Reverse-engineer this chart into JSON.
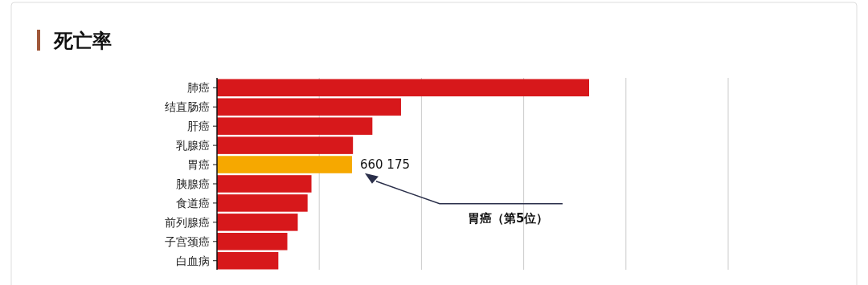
{
  "chart_data": {
    "type": "bar",
    "title": "死亡率",
    "orientation": "horizontal",
    "categories": [
      "肺癌",
      "结直肠癌",
      "肝癌",
      "乳腺癌",
      "胃癌",
      "胰腺癌",
      "食道癌",
      "前列腺癌",
      "子宫颈癌",
      "白血病"
    ],
    "values": [
      1820000,
      900000,
      760000,
      665000,
      660175,
      462000,
      443000,
      395000,
      344000,
      300000
    ],
    "colors": [
      "#d7181b",
      "#d7181b",
      "#d7181b",
      "#d7181b",
      "#f6a800",
      "#d7181b",
      "#d7181b",
      "#d7181b",
      "#d7181b",
      "#d7181b"
    ],
    "value_labels": [
      null,
      null,
      null,
      null,
      "660 175",
      null,
      null,
      null,
      null,
      null
    ],
    "annotations": [
      "胃癌（第5位）"
    ],
    "grid": "x",
    "xticks": [
      {
        "value": 500000,
        "label": null
      },
      {
        "value": 1000000,
        "label": null
      },
      {
        "value": 1500000,
        "label": null
      },
      {
        "value": 2000000,
        "label": null
      },
      {
        "value": 2500000,
        "label": null
      }
    ]
  }
}
